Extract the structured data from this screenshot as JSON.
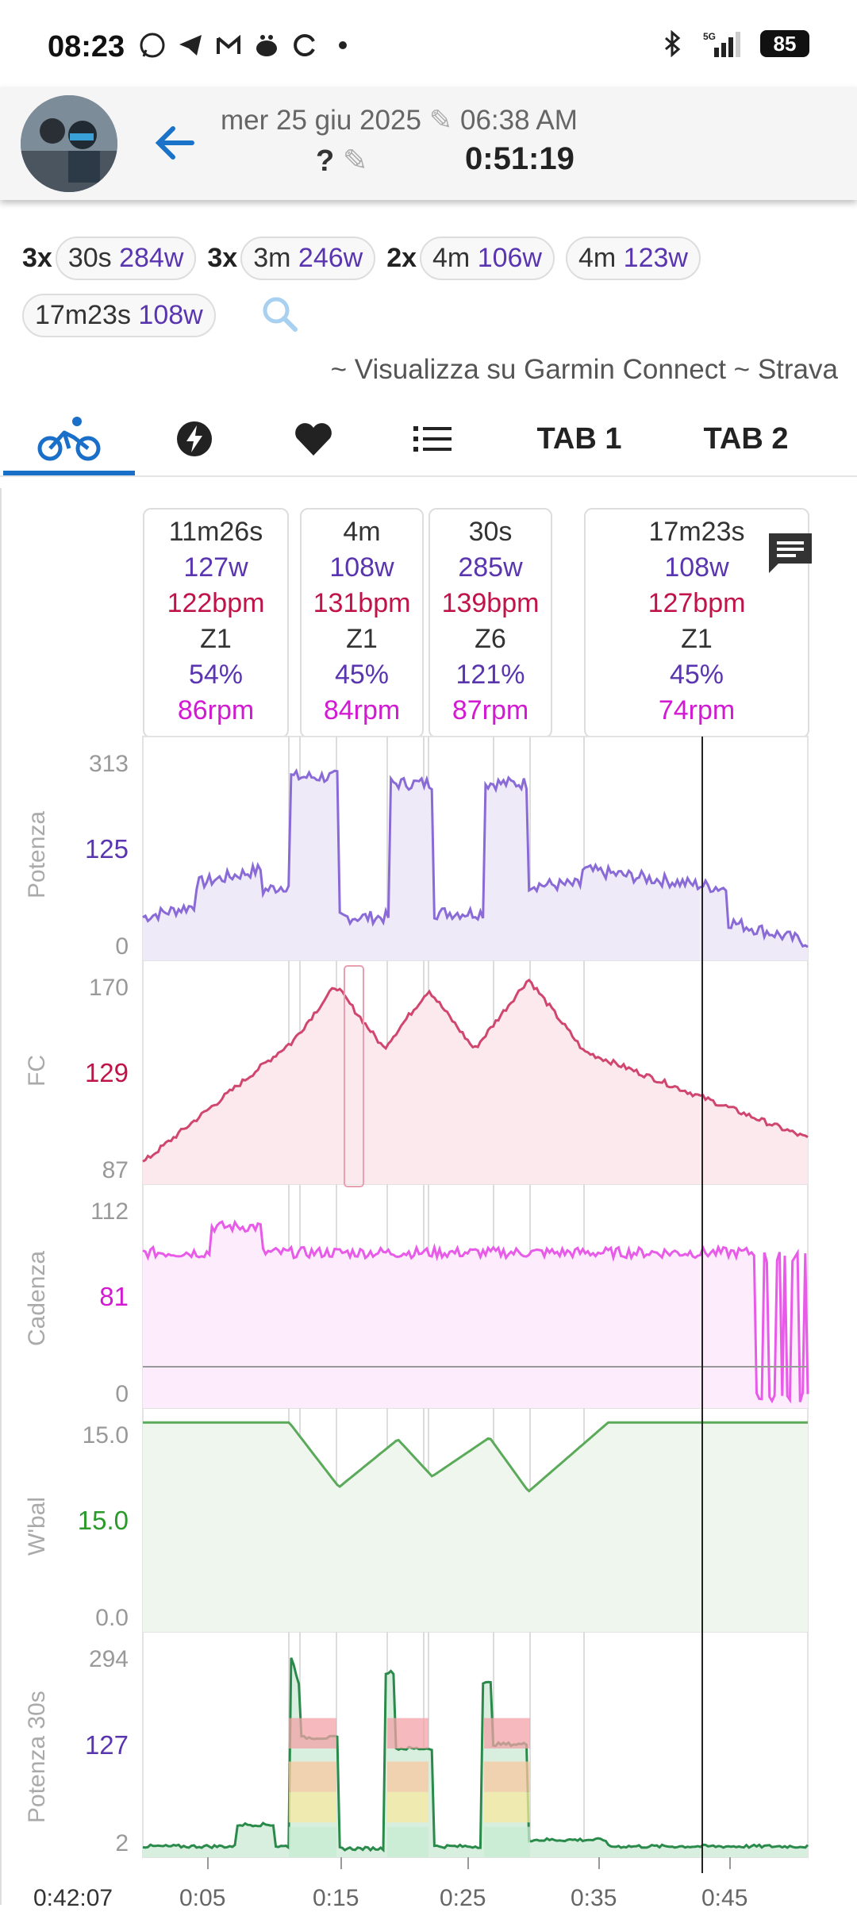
{
  "status": {
    "time": "08:23",
    "battery": "85",
    "network": "5G"
  },
  "header": {
    "date": "mer 25 giu 2025",
    "start_time": "06:38 AM",
    "title": "?",
    "duration": "0:51:19"
  },
  "intervals": [
    {
      "count": "3x",
      "dur": "30s",
      "watts": "284w"
    },
    {
      "count": "3x",
      "dur": "3m",
      "watts": "246w"
    },
    {
      "count": "2x",
      "dur": "4m",
      "watts": "106w"
    },
    {
      "count": "",
      "dur": "4m",
      "watts": "123w"
    },
    {
      "count": "",
      "dur": "17m23s",
      "watts": "108w"
    }
  ],
  "links": {
    "text": "~ Visualizza su Garmin Connect ~ Strava"
  },
  "tabs": [
    {
      "icon": "bike-icon",
      "label": ""
    },
    {
      "icon": "lightning-icon",
      "label": ""
    },
    {
      "icon": "heart-icon",
      "label": ""
    },
    {
      "icon": "list-icon",
      "label": ""
    },
    {
      "icon": "",
      "label": "TAB 1"
    },
    {
      "icon": "",
      "label": "TAB 2"
    }
  ],
  "laps": [
    {
      "dur": "11m26s",
      "watts": "127w",
      "bpm": "122bpm",
      "zone": "Z1",
      "pct": "54%",
      "rpm": "86rpm"
    },
    {
      "dur": "4m",
      "watts": "108w",
      "bpm": "131bpm",
      "zone": "Z1",
      "pct": "45%",
      "rpm": "84rpm"
    },
    {
      "dur": "30s",
      "watts": "285w",
      "bpm": "139bpm",
      "zone": "Z6",
      "pct": "121%",
      "rpm": "87rpm"
    },
    {
      "dur": "17m23s",
      "watts": "108w",
      "bpm": "127bpm",
      "zone": "Z1",
      "pct": "45%",
      "rpm": "74rpm"
    }
  ],
  "charts": [
    {
      "name": "Potenza",
      "max": "313",
      "mid": "125",
      "min": "0",
      "color": "#8a6ad6",
      "fill": "#efeaf8"
    },
    {
      "name": "FC",
      "max": "170",
      "mid": "129",
      "min": "87",
      "color": "#d0466e",
      "fill": "#fbe9ed"
    },
    {
      "name": "Cadenza",
      "max": "112",
      "mid": "81",
      "min": "0",
      "color": "#e85ae8",
      "fill": "#fcecfc"
    },
    {
      "name": "W'bal",
      "max": "15.0",
      "mid": "15.0",
      "min": "0.0",
      "color": "#5aaa5a",
      "fill": "#eef6ee"
    },
    {
      "name": "Potenza 30s",
      "max": "294",
      "mid": "127",
      "min": "2",
      "color": "#2a8a4a",
      "fill": "#d8efe0"
    }
  ],
  "mid_colors": [
    "#5a35b0",
    "#c0134a",
    "#d21ad2",
    "#2a9a2a",
    "#5a35b0"
  ],
  "xaxis": {
    "cursor": "0:42:07",
    "ticks": [
      "0:05",
      "0:15",
      "0:25",
      "0:35",
      "0:45"
    ]
  }
}
